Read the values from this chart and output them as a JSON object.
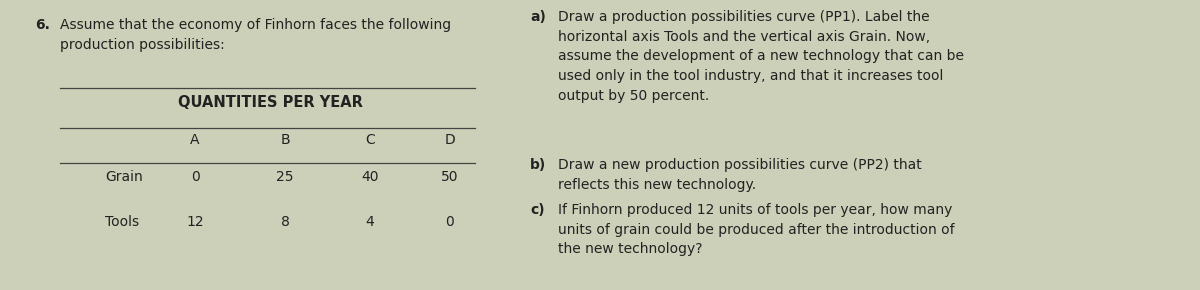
{
  "background_color": "#cdd0b8",
  "left_panel": {
    "question_number": "6.",
    "question_text": "Assume that the economy of Finhorn faces the following\nproduction possibilities:",
    "table_header": "QUANTITIES PER YEAR",
    "columns": [
      "A",
      "B",
      "C",
      "D"
    ],
    "rows": [
      {
        "label": "Grain",
        "values": [
          "0",
          "25",
          "40",
          "50"
        ]
      },
      {
        "label": "Tools",
        "values": [
          "12",
          "8",
          "4",
          "0"
        ]
      }
    ]
  },
  "right_panel": {
    "items": [
      {
        "label": "a)",
        "text": "Draw a production possibilities curve (PP1). Label the\nhorizontal axis Tools and the vertical axis Grain. Now,\nassume the development of a new technology that can be\nused only in the tool industry, and that it increases tool\noutput by 50 percent."
      },
      {
        "label": "b)",
        "text": "Draw a new production possibilities curve (PP2) that\nreflects this new technology."
      },
      {
        "label": "c)",
        "text": "If Finhorn produced 12 units of tools per year, how many\nunits of grain could be produced after the introduction of\nthe new technology?"
      }
    ]
  },
  "font_size_q": 10.0,
  "font_size_table_header": 10.5,
  "font_size_table": 10.0,
  "font_size_right": 10.0,
  "text_color": "#222222",
  "line_color": "#444444"
}
